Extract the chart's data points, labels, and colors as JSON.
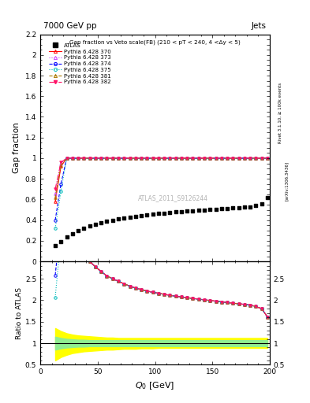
{
  "title_top": "7000 GeV pp",
  "title_right": "Jets",
  "main_title": "Gap fraction vs Veto scale(FB) (210 < pT < 240, 4 <Δy < 5)",
  "watermark": "ATLAS_2011_S9126244",
  "right_label_1": "Rivet 3.1.10, ≥ 100k events",
  "right_label_2": "[arXiv:1306.3436]",
  "xlabel": "$Q_0$ [GeV]",
  "ylabel_main": "Gap fraction",
  "ylabel_ratio": "Ratio to ATLAS",
  "xlim": [
    0,
    200
  ],
  "ylim_main": [
    0.0,
    2.2
  ],
  "ylim_ratio": [
    0.5,
    2.9
  ],
  "atlas_data_x": [
    13,
    18,
    23,
    28,
    33,
    38,
    43,
    48,
    53,
    58,
    63,
    68,
    73,
    78,
    83,
    88,
    93,
    98,
    103,
    108,
    113,
    118,
    123,
    128,
    133,
    138,
    143,
    148,
    153,
    158,
    163,
    168,
    173,
    178,
    183,
    188,
    193,
    198
  ],
  "atlas_data_y": [
    0.155,
    0.195,
    0.235,
    0.27,
    0.3,
    0.325,
    0.345,
    0.36,
    0.375,
    0.39,
    0.4,
    0.41,
    0.42,
    0.43,
    0.438,
    0.445,
    0.452,
    0.458,
    0.463,
    0.468,
    0.473,
    0.478,
    0.482,
    0.486,
    0.49,
    0.494,
    0.498,
    0.502,
    0.506,
    0.51,
    0.514,
    0.518,
    0.522,
    0.526,
    0.53,
    0.54,
    0.555,
    0.62
  ],
  "mc_x": [
    13,
    18,
    23,
    28,
    33,
    38,
    43,
    48,
    53,
    58,
    63,
    68,
    73,
    78,
    83,
    88,
    93,
    98,
    103,
    108,
    113,
    118,
    123,
    128,
    133,
    138,
    143,
    148,
    153,
    158,
    163,
    168,
    173,
    178,
    183,
    188,
    193,
    198
  ],
  "mc_370_y": [
    0.58,
    0.92,
    1.0,
    1.0,
    1.0,
    1.0,
    1.0,
    1.0,
    1.0,
    1.0,
    1.0,
    1.0,
    1.0,
    1.0,
    1.0,
    1.0,
    1.0,
    1.0,
    1.0,
    1.0,
    1.0,
    1.0,
    1.0,
    1.0,
    1.0,
    1.0,
    1.0,
    1.0,
    1.0,
    1.0,
    1.0,
    1.0,
    1.0,
    1.0,
    1.0,
    1.0,
    1.0,
    1.0
  ],
  "mc_373_y": [
    0.66,
    0.95,
    1.0,
    1.0,
    1.0,
    1.0,
    1.0,
    1.0,
    1.0,
    1.0,
    1.0,
    1.0,
    1.0,
    1.0,
    1.0,
    1.0,
    1.0,
    1.0,
    1.0,
    1.0,
    1.0,
    1.0,
    1.0,
    1.0,
    1.0,
    1.0,
    1.0,
    1.0,
    1.0,
    1.0,
    1.0,
    1.0,
    1.0,
    1.0,
    1.0,
    1.0,
    1.0,
    1.0
  ],
  "mc_374_y": [
    0.4,
    0.75,
    1.0,
    1.0,
    1.0,
    1.0,
    1.0,
    1.0,
    1.0,
    1.0,
    1.0,
    1.0,
    1.0,
    1.0,
    1.0,
    1.0,
    1.0,
    1.0,
    1.0,
    1.0,
    1.0,
    1.0,
    1.0,
    1.0,
    1.0,
    1.0,
    1.0,
    1.0,
    1.0,
    1.0,
    1.0,
    1.0,
    1.0,
    1.0,
    1.0,
    1.0,
    1.0,
    1.0
  ],
  "mc_375_y": [
    0.32,
    0.68,
    1.0,
    1.0,
    1.0,
    1.0,
    1.0,
    1.0,
    1.0,
    1.0,
    1.0,
    1.0,
    1.0,
    1.0,
    1.0,
    1.0,
    1.0,
    1.0,
    1.0,
    1.0,
    1.0,
    1.0,
    1.0,
    1.0,
    1.0,
    1.0,
    1.0,
    1.0,
    1.0,
    1.0,
    1.0,
    1.0,
    1.0,
    1.0,
    1.0,
    1.0,
    1.0,
    1.0
  ],
  "mc_381_y": [
    0.62,
    0.93,
    1.0,
    1.0,
    1.0,
    1.0,
    1.0,
    1.0,
    1.0,
    1.0,
    1.0,
    1.0,
    1.0,
    1.0,
    1.0,
    1.0,
    1.0,
    1.0,
    1.0,
    1.0,
    1.0,
    1.0,
    1.0,
    1.0,
    1.0,
    1.0,
    1.0,
    1.0,
    1.0,
    1.0,
    1.0,
    1.0,
    1.0,
    1.0,
    1.0,
    1.0,
    1.0,
    1.0
  ],
  "mc_382_y": [
    0.7,
    0.96,
    1.0,
    1.0,
    1.0,
    1.0,
    1.0,
    1.0,
    1.0,
    1.0,
    1.0,
    1.0,
    1.0,
    1.0,
    1.0,
    1.0,
    1.0,
    1.0,
    1.0,
    1.0,
    1.0,
    1.0,
    1.0,
    1.0,
    1.0,
    1.0,
    1.0,
    1.0,
    1.0,
    1.0,
    1.0,
    1.0,
    1.0,
    1.0,
    1.0,
    1.0,
    1.0,
    1.0
  ],
  "mc_color_370": "#FF0000",
  "mc_color_373": "#CC44FF",
  "mc_color_374": "#0000FF",
  "mc_color_375": "#00BBBB",
  "mc_color_381": "#AA7700",
  "mc_color_382": "#FF1166",
  "green_band_x": [
    13,
    18,
    23,
    28,
    33,
    38,
    43,
    48,
    53,
    58,
    63,
    68,
    73,
    78,
    83,
    88,
    93,
    98,
    103,
    108,
    113,
    118,
    123,
    128,
    133,
    138,
    143,
    148,
    153,
    158,
    163,
    168,
    173,
    178,
    183,
    188,
    193,
    198
  ],
  "green_band_upper": [
    1.15,
    1.12,
    1.1,
    1.09,
    1.08,
    1.08,
    1.07,
    1.07,
    1.07,
    1.07,
    1.07,
    1.07,
    1.07,
    1.07,
    1.07,
    1.07,
    1.07,
    1.07,
    1.07,
    1.07,
    1.07,
    1.07,
    1.07,
    1.07,
    1.07,
    1.07,
    1.07,
    1.07,
    1.07,
    1.07,
    1.07,
    1.07,
    1.07,
    1.07,
    1.07,
    1.07,
    1.07,
    1.07
  ],
  "green_band_lower": [
    0.85,
    0.88,
    0.9,
    0.91,
    0.92,
    0.92,
    0.93,
    0.93,
    0.93,
    0.93,
    0.93,
    0.93,
    0.93,
    0.93,
    0.93,
    0.93,
    0.93,
    0.93,
    0.93,
    0.93,
    0.93,
    0.93,
    0.93,
    0.93,
    0.93,
    0.93,
    0.93,
    0.93,
    0.93,
    0.93,
    0.93,
    0.93,
    0.93,
    0.93,
    0.93,
    0.93,
    0.93,
    0.93
  ],
  "yellow_band_upper": [
    1.35,
    1.28,
    1.23,
    1.2,
    1.18,
    1.17,
    1.16,
    1.15,
    1.14,
    1.13,
    1.13,
    1.12,
    1.12,
    1.12,
    1.12,
    1.12,
    1.12,
    1.12,
    1.12,
    1.12,
    1.12,
    1.12,
    1.12,
    1.12,
    1.12,
    1.12,
    1.12,
    1.12,
    1.12,
    1.12,
    1.12,
    1.12,
    1.12,
    1.12,
    1.12,
    1.12,
    1.12,
    1.12
  ],
  "yellow_band_lower": [
    0.6,
    0.68,
    0.73,
    0.77,
    0.79,
    0.81,
    0.82,
    0.83,
    0.84,
    0.85,
    0.85,
    0.86,
    0.87,
    0.87,
    0.87,
    0.88,
    0.88,
    0.88,
    0.89,
    0.89,
    0.89,
    0.89,
    0.89,
    0.89,
    0.89,
    0.89,
    0.89,
    0.89,
    0.89,
    0.89,
    0.89,
    0.89,
    0.89,
    0.89,
    0.89,
    0.89,
    0.89,
    0.89
  ]
}
